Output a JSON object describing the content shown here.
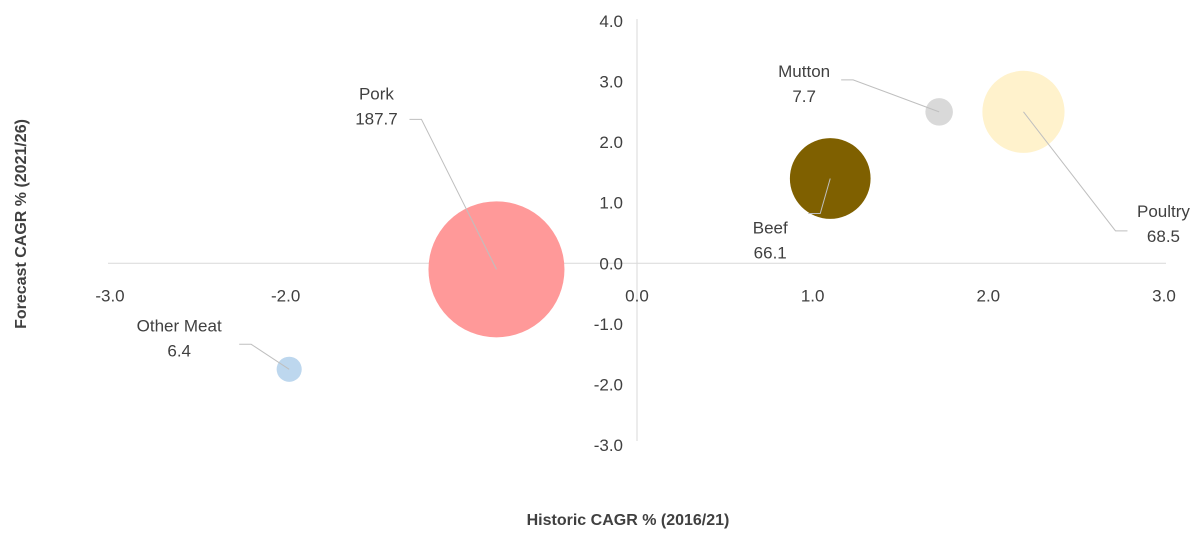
{
  "chart_data": {
    "type": "bubble",
    "xlabel": "Historic CAGR % (2016/21)",
    "ylabel": "Forecast CAGR % (2021/26)",
    "xlim": [
      -3.0,
      3.0
    ],
    "ylim": [
      -3.0,
      4.0
    ],
    "x_ticks": [
      "-3.0",
      "-2.0",
      "-1.0",
      "0.0",
      "1.0",
      "2.0",
      "3.0"
    ],
    "y_ticks": [
      "4.0",
      "3.0",
      "2.0",
      "1.0",
      "0.0",
      "-1.0",
      "-2.0",
      "-3.0"
    ],
    "grid": false,
    "legend": "none",
    "series": [
      {
        "name": "Pork",
        "x": -0.8,
        "y": -0.1,
        "size": 187.7,
        "size_label": "187.7",
        "color": "#FF9999"
      },
      {
        "name": "Beef",
        "x": 1.1,
        "y": 1.4,
        "size": 66.1,
        "size_label": "66.1",
        "color": "#7F6000"
      },
      {
        "name": "Poultry",
        "x": 2.2,
        "y": 2.5,
        "size": 68.5,
        "size_label": "68.5",
        "color": "#FFF2CC"
      },
      {
        "name": "Mutton",
        "x": 1.72,
        "y": 2.5,
        "size": 7.7,
        "size_label": "7.7",
        "color": "#D9D9D9"
      },
      {
        "name": "Other Meat",
        "x": -1.98,
        "y": -1.75,
        "size": 6.4,
        "size_label": "6.4",
        "color": "#BDD7EE"
      }
    ]
  }
}
